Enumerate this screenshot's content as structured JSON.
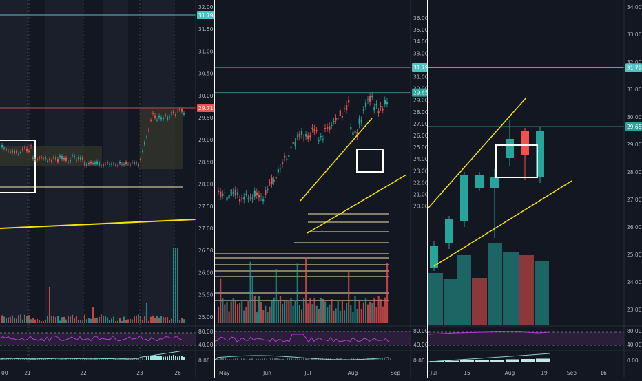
{
  "colors": {
    "background": "#131722",
    "grid": "#1e2230",
    "axis_text": "#b2b5be",
    "bull": "#26a69a",
    "bear": "#ef5350",
    "trendline": "#f5e500",
    "level_line": "#f6e6b0",
    "box": "#ffffff",
    "rsi_band": "#2a1e3a",
    "rsi_line": "#b040d0",
    "price_line": "#4fc3c0",
    "badge_cyan": "#4fc3c0",
    "badge_red": "#ef5350",
    "badge_green": "#26a69a"
  },
  "panels": [
    {
      "id": "left",
      "timeframe": "intraday",
      "price_axis": [
        "32.00",
        "31.50",
        "31.00",
        "30.50",
        "30.00",
        "29.50",
        "29.00",
        "28.50",
        "28.00",
        "27.50",
        "27.00",
        "26.50",
        "26.00",
        "25.50",
        "25.00"
      ],
      "badges": [
        {
          "text": "31.79",
          "style": "cyan"
        },
        {
          "text": "29.71",
          "style": "red"
        }
      ],
      "rsi_axis": [
        "80.00",
        "40.00"
      ],
      "macd_axis": [
        "0.00"
      ],
      "time_axis": [
        "00",
        "21",
        "22",
        "23",
        "26"
      ]
    },
    {
      "id": "middle",
      "timeframe": "daily",
      "price_axis": [
        "36.00",
        "35.00",
        "34.00",
        "33.00",
        "32.00",
        "31.00",
        "30.00",
        "29.00",
        "28.00",
        "27.00",
        "26.00",
        "25.00",
        "24.00",
        "23.00",
        "22.00",
        "21.00",
        "20.00"
      ],
      "badges": [
        {
          "text": "31.79",
          "style": "cyan"
        },
        {
          "text": "29.65",
          "style": "green"
        }
      ],
      "rsi_axis": [
        "80.00",
        "40.00"
      ],
      "macd_axis": [
        "0.00"
      ],
      "time_axis": [
        "May",
        "Jun",
        "Jul",
        "Aug",
        "Sep"
      ]
    },
    {
      "id": "right",
      "timeframe": "weekly",
      "price_axis": [
        "34.00",
        "33.00",
        "32.00",
        "31.00",
        "30.00",
        "29.00",
        "28.00",
        "27.00",
        "26.00",
        "25.00",
        "24.00",
        "23.00"
      ],
      "badges": [
        {
          "text": "31.79",
          "style": "cyan"
        },
        {
          "text": "29.65",
          "style": "green"
        }
      ],
      "rsi_axis": [
        "80.00",
        "40.00"
      ],
      "macd_axis": [
        "0.00"
      ],
      "time_axis": [
        "Jul",
        "15",
        "Aug",
        "19",
        "Sep",
        "16"
      ]
    }
  ]
}
